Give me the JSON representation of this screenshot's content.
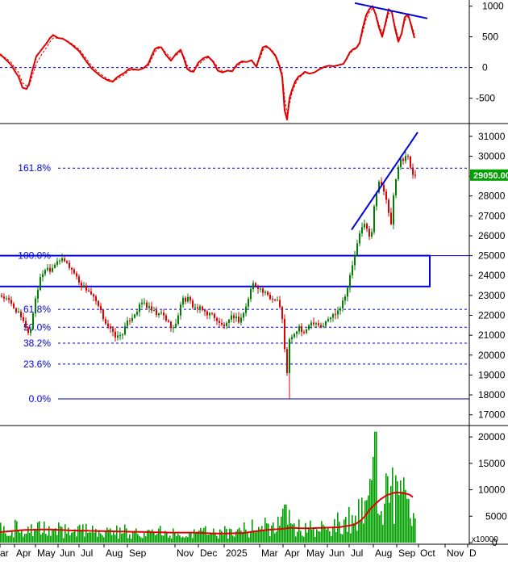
{
  "colors": {
    "up": "#008000",
    "down": "#e00000",
    "osc_main": "#e00000",
    "osc_signal": "#e00000",
    "volume": "#00a000",
    "volume_ma": "#e00000",
    "trendline": "#0000e0",
    "fib": "#0000c8",
    "box": "#0000e0",
    "last_price_bg": "#00a000",
    "axis_text": "#000000",
    "fib_text": "#0000e0"
  },
  "time_axis": {
    "labels": [
      "ar",
      "Apr",
      "May",
      "Jun",
      "Jul",
      "Aug",
      "Sep",
      "Nov",
      "Dec",
      "2025",
      "Mar",
      "Apr",
      "May",
      "Jun",
      "Jul",
      "Aug",
      "Sep",
      "Oct",
      "Nov",
      "D"
    ]
  },
  "chart_data": [
    {
      "type": "line",
      "panel": "oscillator",
      "ylim": [
        -900,
        1100
      ],
      "yticks": [
        1000,
        500,
        0,
        -500
      ],
      "reference_line": 0,
      "series": [
        {
          "role": "main",
          "x": [
            0,
            8,
            14,
            18,
            23,
            28,
            33,
            36,
            39,
            45,
            52,
            58,
            62,
            66,
            72,
            78,
            84,
            90,
            98,
            106,
            114,
            122,
            128,
            134,
            140,
            145,
            150,
            155,
            160,
            166,
            172,
            178,
            184,
            188,
            192,
            196,
            200,
            206,
            212,
            218,
            224,
            228,
            232,
            236,
            240,
            246,
            252,
            258,
            264,
            270,
            276,
            282,
            288,
            294,
            300,
            306,
            312,
            318,
            322,
            326,
            330,
            334,
            338,
            342,
            346,
            350,
            353,
            356,
            359,
            362,
            366,
            370,
            374,
            378,
            384,
            390,
            396,
            402,
            408,
            414,
            420,
            426,
            430,
            434,
            438,
            442,
            446,
            450,
            454,
            458,
            462,
            466,
            470,
            474,
            478,
            482,
            486,
            490,
            494,
            498,
            502,
            506,
            510,
            514
          ],
          "y": [
            220,
            120,
            40,
            -50,
            -150,
            -330,
            -350,
            -270,
            -100,
            180,
            300,
            400,
            480,
            530,
            480,
            470,
            420,
            360,
            270,
            120,
            -20,
            -110,
            -170,
            -210,
            -230,
            -160,
            -120,
            -80,
            -20,
            -30,
            -40,
            -10,
            60,
            190,
            300,
            330,
            330,
            200,
            110,
            220,
            290,
            150,
            -20,
            -60,
            -70,
            80,
            150,
            180,
            100,
            -50,
            -80,
            -50,
            -60,
            50,
            100,
            90,
            120,
            10,
            180,
            330,
            350,
            310,
            250,
            180,
            40,
            -150,
            -700,
            -850,
            -500,
            -370,
            -230,
            -150,
            -120,
            -70,
            -100,
            -80,
            -30,
            10,
            30,
            20,
            40,
            60,
            150,
            250,
            300,
            320,
            400,
            650,
            850,
            950,
            1000,
            860,
            650,
            500,
            720,
            950,
            900,
            630,
            420,
            550,
            820,
            870,
            680,
            480
          ],
          "shown_as": "thick solid"
        },
        {
          "role": "signal",
          "x": [
            0,
            8,
            14,
            18,
            23,
            28,
            33,
            36,
            39,
            45,
            52,
            58,
            62,
            66,
            72,
            78,
            84,
            90,
            98,
            106,
            114,
            122,
            128,
            134,
            140,
            145,
            150,
            155,
            160,
            166,
            172,
            178,
            184,
            188,
            192,
            196,
            200,
            206,
            212,
            218,
            224,
            228,
            232,
            236,
            240,
            246,
            252,
            258,
            264,
            270,
            276,
            282,
            288,
            294,
            300,
            306,
            312,
            318,
            322,
            326,
            330,
            334,
            338,
            342,
            346,
            350,
            353,
            356,
            359,
            362,
            366,
            370,
            374,
            378,
            384,
            390,
            396,
            402,
            408,
            414,
            420,
            426,
            430,
            434,
            438,
            442,
            446,
            450,
            454,
            458,
            462,
            466,
            470,
            474,
            478,
            482,
            486,
            490,
            494,
            498,
            502,
            506,
            510,
            514
          ],
          "y": [
            200,
            150,
            80,
            0,
            -80,
            -250,
            -300,
            -300,
            -180,
            60,
            220,
            330,
            420,
            480,
            480,
            470,
            430,
            380,
            300,
            160,
            20,
            -80,
            -140,
            -190,
            -220,
            -190,
            -150,
            -110,
            -50,
            -40,
            -40,
            -20,
            30,
            140,
            250,
            310,
            320,
            240,
            150,
            190,
            260,
            190,
            40,
            -30,
            -60,
            40,
            120,
            160,
            120,
            0,
            -60,
            -60,
            -60,
            20,
            80,
            90,
            110,
            40,
            130,
            280,
            330,
            320,
            270,
            200,
            80,
            -90,
            -500,
            -750,
            -600,
            -420,
            -280,
            -180,
            -130,
            -90,
            -100,
            -80,
            -40,
            0,
            20,
            20,
            40,
            60,
            130,
            230,
            280,
            310,
            380,
            580,
            780,
            900,
            960,
            880,
            700,
            560,
            680,
            880,
            880,
            680,
            480,
            540,
            760,
            840,
            720,
            540
          ],
          "shown_as": "thin dashed"
        }
      ],
      "trendline": {
        "x": [
          440,
          530
        ],
        "y": [
          1050,
          800
        ]
      }
    },
    {
      "type": "candlestick",
      "panel": "price",
      "ylim": [
        16500,
        31600
      ],
      "yticks": [
        31000,
        30000,
        29000,
        28000,
        27000,
        26000,
        25000,
        24000,
        23000,
        22000,
        21000,
        20000,
        19000,
        18000,
        17000
      ],
      "last_price": "29050.00",
      "fibonacci_levels": [
        {
          "label": "161.8%",
          "value": 29400
        },
        {
          "label": "100.0%",
          "value": 25000
        },
        {
          "label": "61.8%",
          "value": 22300
        },
        {
          "label": "50.0%",
          "value": 21400
        },
        {
          "label": "38.2%",
          "value": 20600
        },
        {
          "label": "23.6%",
          "value": 19550
        },
        {
          "label": "0.0%",
          "value": 17800
        }
      ],
      "resistance_box": {
        "x_from": 0,
        "x_to": 533,
        "top": 25000,
        "bottom": 23450
      },
      "trendline": {
        "x": [
          436,
          518
        ],
        "y": [
          26300,
          31200
        ]
      },
      "anchors": {
        "x": [
          0,
          10,
          20,
          30,
          36,
          42,
          50,
          56,
          62,
          70,
          80,
          90,
          100,
          110,
          120,
          128,
          134,
          140,
          146,
          152,
          158,
          164,
          170,
          176,
          182,
          188,
          194,
          200,
          208,
          216,
          224,
          232,
          240,
          248,
          256,
          264,
          272,
          280,
          288,
          296,
          304,
          312,
          318,
          324,
          330,
          336,
          342,
          348,
          352,
          355,
          358,
          362,
          366,
          370,
          376,
          382,
          390,
          398,
          406,
          414,
          422,
          430,
          436,
          440,
          444,
          448,
          452,
          456,
          460,
          464,
          468,
          472,
          476,
          480,
          484,
          488,
          492,
          496,
          500,
          504,
          508,
          512
        ],
        "close": [
          23000,
          22700,
          22200,
          21500,
          21000,
          22700,
          24000,
          24400,
          24300,
          24800,
          24700,
          24200,
          23500,
          23200,
          22500,
          21800,
          21400,
          21000,
          20900,
          21200,
          21700,
          22000,
          22300,
          22700,
          22400,
          22200,
          22000,
          22100,
          21600,
          21300,
          22800,
          22800,
          22400,
          22300,
          22100,
          22000,
          21500,
          21500,
          22000,
          21700,
          22400,
          23600,
          23500,
          23200,
          23000,
          22800,
          22900,
          22200,
          20500,
          19300,
          21000,
          20800,
          21200,
          21400,
          21000,
          21600,
          21700,
          21400,
          21800,
          22100,
          22500,
          23400,
          24500,
          25200,
          25900,
          26400,
          26800,
          25800,
          26200,
          27800,
          28800,
          28600,
          28000,
          27400,
          26500,
          28400,
          29200,
          30000,
          29700,
          30200,
          29500,
          29050
        ]
      }
    },
    {
      "type": "bar",
      "panel": "volume",
      "ylim": [
        0,
        22000
      ],
      "yticks": [
        20000,
        15000,
        10000,
        5000,
        0
      ],
      "unit_label": "x10000",
      "anchors": {
        "x": [
          0,
          30,
          60,
          90,
          120,
          150,
          180,
          210,
          240,
          270,
          300,
          330,
          350,
          355,
          360,
          380,
          400,
          420,
          440,
          450,
          460,
          465,
          470,
          480,
          490,
          500,
          510,
          514
        ],
        "volume": [
          2800,
          2600,
          2400,
          2300,
          2200,
          2100,
          2000,
          1900,
          2000,
          1800,
          2500,
          3000,
          4000,
          7000,
          3000,
          2800,
          3200,
          3800,
          4500,
          7000,
          9000,
          21000,
          8000,
          10000,
          9000,
          8000,
          7000,
          6000
        ],
        "ma": [
          2000,
          2400,
          2500,
          2300,
          2200,
          2100,
          2000,
          1900,
          1900,
          1700,
          1800,
          2400,
          2600,
          2700,
          2800,
          2700,
          2800,
          2900,
          3400,
          4500,
          6500,
          7200,
          8000,
          9000,
          9500,
          9400,
          9000,
          8200
        ]
      }
    }
  ]
}
